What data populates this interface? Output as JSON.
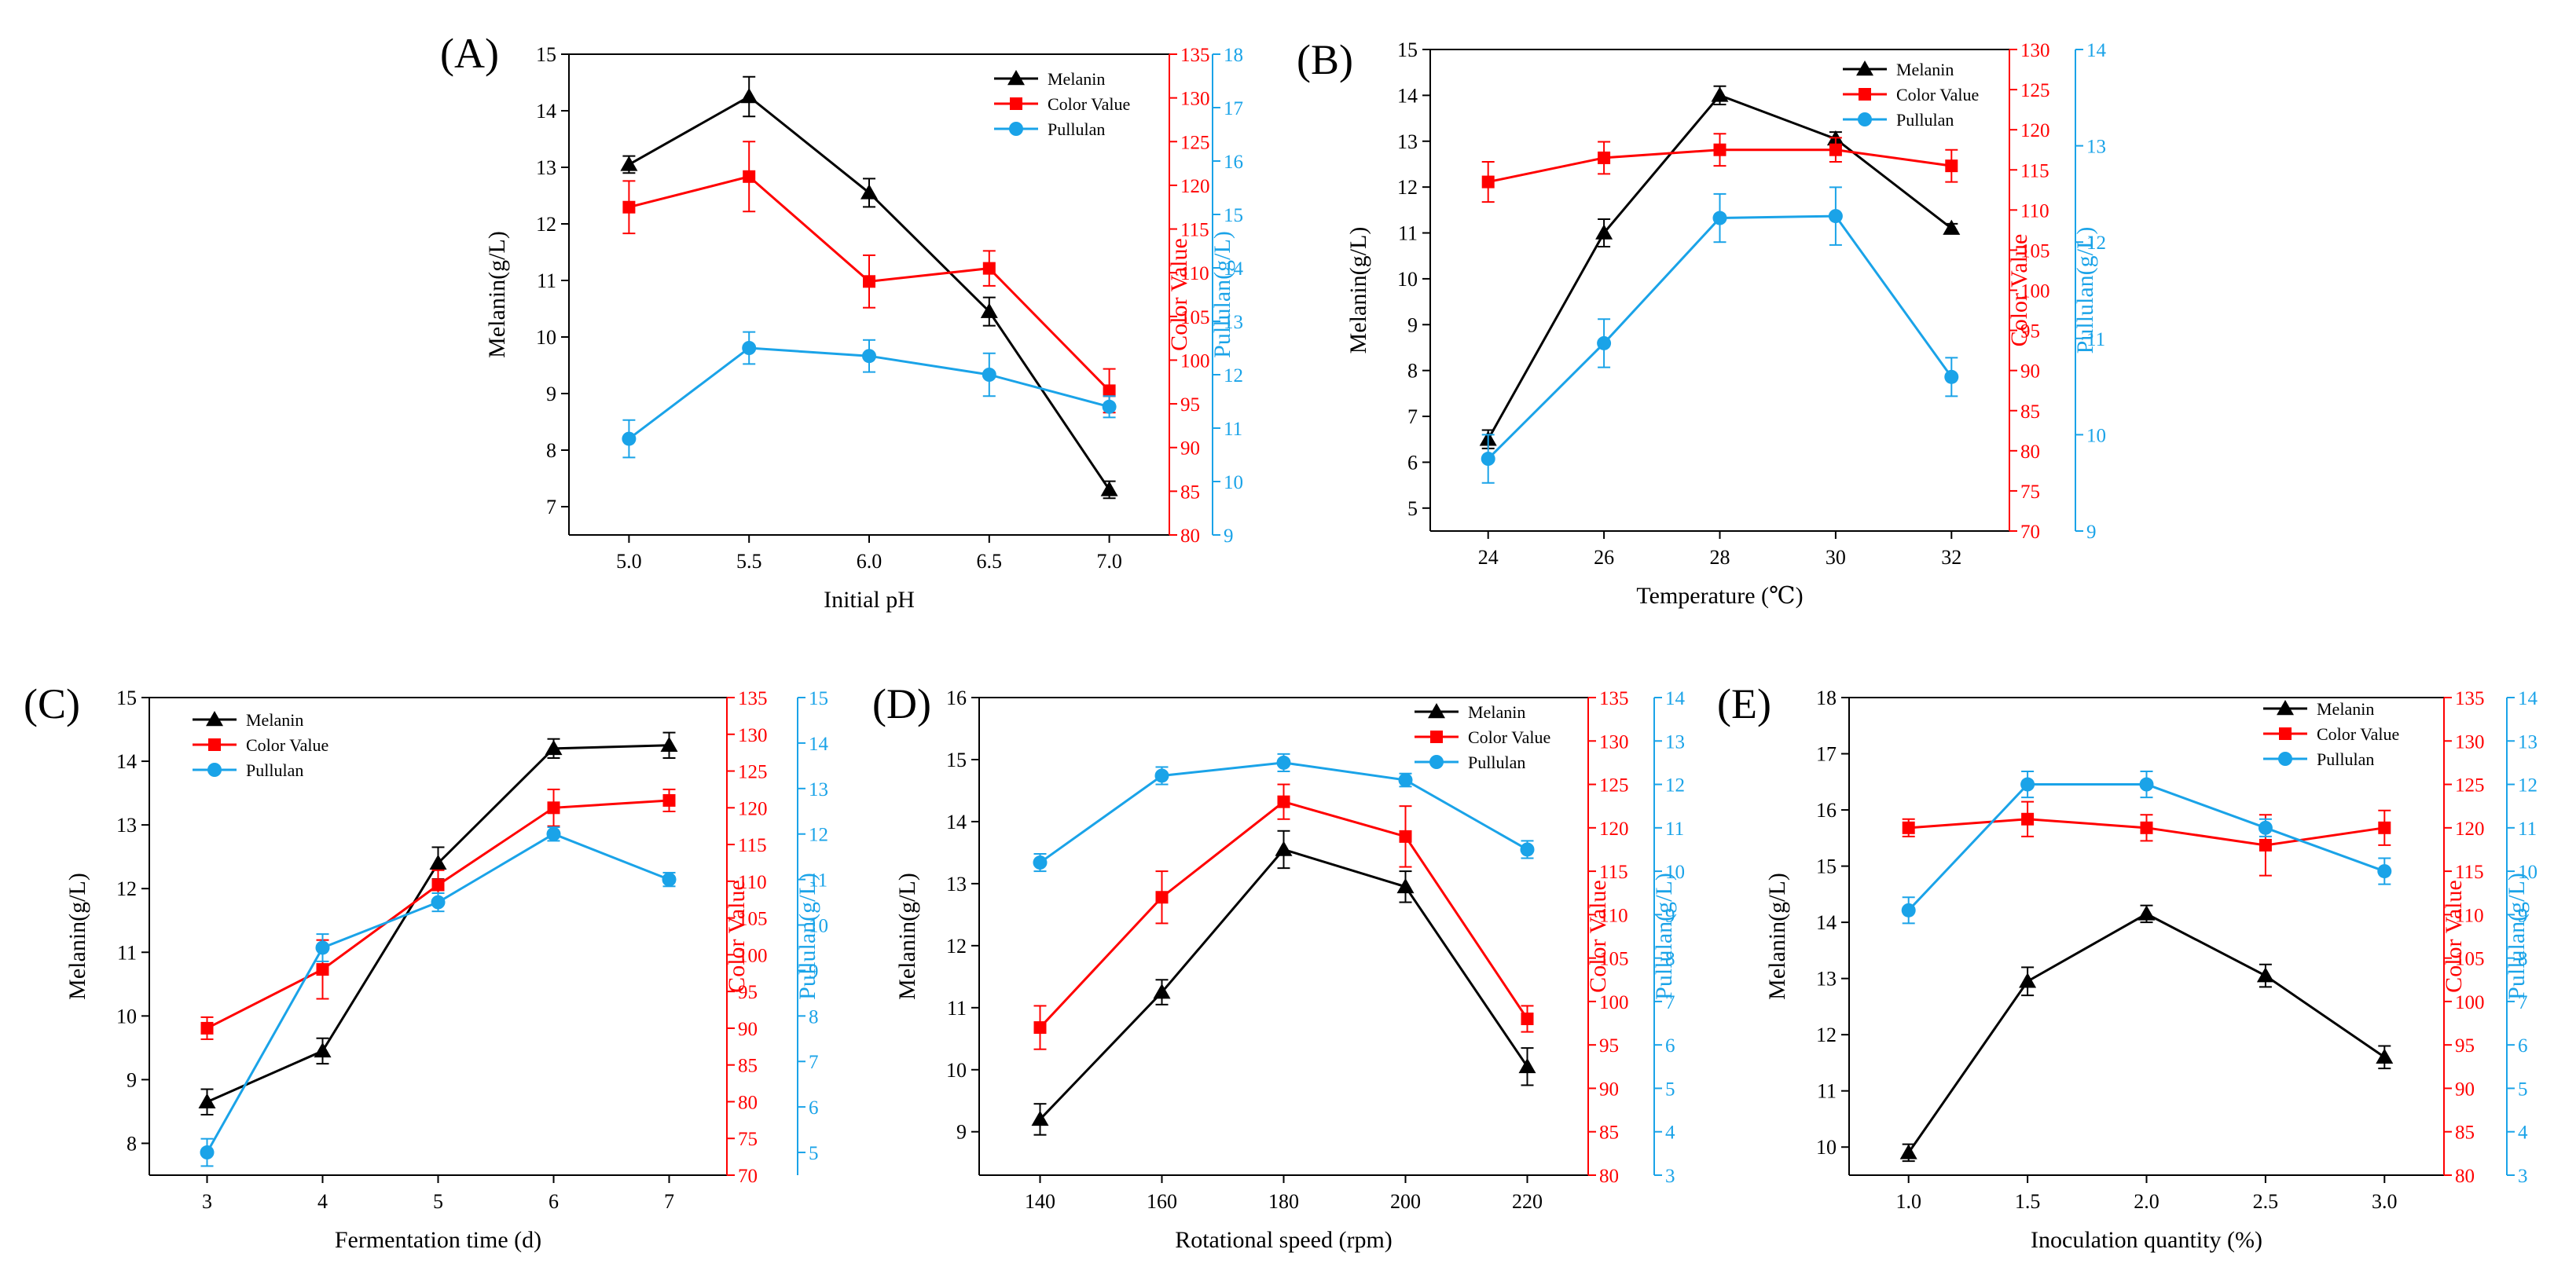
{
  "colors": {
    "melanin": "#000000",
    "color_value": "#ff0000",
    "pullulan": "#1aa3e8"
  },
  "chart_data": [
    {
      "panel_label": "(A)",
      "type": "line",
      "xlabel": "Initial pH",
      "x_ticks": [
        "5.0",
        "5.5",
        "6.0",
        "6.5",
        "7.0"
      ],
      "x": [
        5.0,
        5.5,
        6.0,
        6.5,
        7.0
      ],
      "xlim": [
        4.75,
        7.25
      ],
      "y_left": {
        "label": "Melanin(g/L)",
        "lim": [
          6.5,
          15
        ],
        "ticks": [
          7,
          8,
          9,
          10,
          11,
          12,
          13,
          14,
          15
        ]
      },
      "y_right1": {
        "label": "Color Value",
        "lim": [
          80,
          135
        ],
        "ticks": [
          80,
          85,
          90,
          95,
          100,
          105,
          110,
          115,
          120,
          125,
          130,
          135
        ]
      },
      "y_right2": {
        "label": "Pullulan(g/L)",
        "lim": [
          9,
          18
        ],
        "ticks": [
          9,
          10,
          11,
          12,
          13,
          14,
          15,
          16,
          17,
          18
        ]
      },
      "legend": "top-right",
      "series": [
        {
          "name": "Melanin",
          "axis": "left",
          "values": [
            13.05,
            14.25,
            12.55,
            10.45,
            7.3
          ],
          "errors": [
            0.15,
            0.35,
            0.25,
            0.25,
            0.15
          ]
        },
        {
          "name": "Color Value",
          "axis": "right1",
          "values": [
            117.5,
            121.0,
            109.0,
            110.5,
            96.5
          ],
          "errors": [
            3.0,
            4.0,
            3.0,
            2.0,
            2.5
          ]
        },
        {
          "name": "Pullulan",
          "axis": "right2",
          "values": [
            10.8,
            12.5,
            12.35,
            12.0,
            11.4
          ],
          "errors": [
            0.35,
            0.3,
            0.3,
            0.4,
            0.2
          ]
        }
      ]
    },
    {
      "panel_label": "(B)",
      "type": "line",
      "xlabel": "Temperature (℃)",
      "x_ticks": [
        "24",
        "26",
        "28",
        "30",
        "32"
      ],
      "x": [
        24,
        26,
        28,
        30,
        32
      ],
      "xlim": [
        23,
        33
      ],
      "y_left": {
        "label": "Melanin(g/L)",
        "lim": [
          4.5,
          15
        ],
        "ticks": [
          5,
          6,
          7,
          8,
          9,
          10,
          11,
          12,
          13,
          14,
          15
        ]
      },
      "y_right1": {
        "label": "Color Value",
        "lim": [
          70,
          130
        ],
        "ticks": [
          70,
          75,
          80,
          85,
          90,
          95,
          100,
          105,
          110,
          115,
          120,
          125,
          130
        ]
      },
      "y_right2": {
        "label": "Pullulan(g/L)",
        "lim": [
          9,
          14
        ],
        "ticks": [
          9,
          10,
          11,
          12,
          13,
          14
        ]
      },
      "legend": "top-right",
      "series": [
        {
          "name": "Melanin",
          "axis": "left",
          "values": [
            6.5,
            11.0,
            14.0,
            13.05,
            11.1
          ],
          "errors": [
            0.2,
            0.3,
            0.2,
            0.15,
            0.1
          ]
        },
        {
          "name": "Color Value",
          "axis": "right1",
          "values": [
            113.5,
            116.5,
            117.5,
            117.5,
            115.5
          ],
          "errors": [
            2.5,
            2.0,
            2.0,
            1.5,
            2.0
          ]
        },
        {
          "name": "Pullulan",
          "axis": "right2",
          "values": [
            9.75,
            10.95,
            12.25,
            12.27,
            10.6
          ],
          "errors": [
            0.25,
            0.25,
            0.25,
            0.3,
            0.2
          ]
        }
      ]
    },
    {
      "panel_label": "(C)",
      "type": "line",
      "xlabel": "Fermentation time (d)",
      "x_ticks": [
        "3",
        "4",
        "5",
        "6",
        "7"
      ],
      "x": [
        3,
        4,
        5,
        6,
        7
      ],
      "xlim": [
        2.5,
        7.5
      ],
      "y_left": {
        "label": "Melanin(g/L)",
        "lim": [
          7.5,
          15
        ],
        "ticks": [
          8,
          9,
          10,
          11,
          12,
          13,
          14,
          15
        ]
      },
      "y_right1": {
        "label": "Color Value",
        "lim": [
          70,
          135
        ],
        "ticks": [
          70,
          75,
          80,
          85,
          90,
          95,
          100,
          105,
          110,
          115,
          120,
          125,
          130,
          135
        ]
      },
      "y_right2": {
        "label": "Pullulan(g/L)",
        "lim": [
          4.5,
          15
        ],
        "ticks": [
          5,
          6,
          7,
          8,
          9,
          10,
          11,
          12,
          13,
          14,
          15
        ]
      },
      "legend": "top-left",
      "series": [
        {
          "name": "Melanin",
          "axis": "left",
          "values": [
            8.65,
            9.45,
            12.4,
            14.2,
            14.25
          ],
          "errors": [
            0.2,
            0.2,
            0.25,
            0.15,
            0.2
          ]
        },
        {
          "name": "Color Value",
          "axis": "right1",
          "values": [
            90.0,
            98.0,
            109.5,
            120.0,
            121.0
          ],
          "errors": [
            1.5,
            4.0,
            2.0,
            2.5,
            1.5
          ]
        },
        {
          "name": "Pullulan",
          "axis": "right2",
          "values": [
            5.0,
            9.5,
            10.5,
            12.0,
            11.0
          ],
          "errors": [
            0.3,
            0.3,
            0.2,
            0.15,
            0.15
          ]
        }
      ]
    },
    {
      "panel_label": "(D)",
      "type": "line",
      "xlabel": "Rotational speed (rpm)",
      "x_ticks": [
        "140",
        "160",
        "180",
        "200",
        "220"
      ],
      "x": [
        140,
        160,
        180,
        200,
        220
      ],
      "xlim": [
        130,
        230
      ],
      "y_left": {
        "label": "Melanin(g/L)",
        "lim": [
          8.3,
          16
        ],
        "ticks": [
          9,
          10,
          11,
          12,
          13,
          14,
          15,
          16
        ]
      },
      "y_right1": {
        "label": "Color Value",
        "lim": [
          80,
          135
        ],
        "ticks": [
          80,
          85,
          90,
          95,
          100,
          105,
          110,
          115,
          120,
          125,
          130,
          135
        ]
      },
      "y_right2": {
        "label": "Pullulan(g/L)",
        "lim": [
          3,
          14
        ],
        "ticks": [
          3,
          4,
          5,
          6,
          7,
          8,
          9,
          10,
          11,
          12,
          13,
          14
        ]
      },
      "legend": "top-right",
      "series": [
        {
          "name": "Melanin",
          "axis": "left",
          "values": [
            9.2,
            11.25,
            13.55,
            12.95,
            10.05
          ],
          "errors": [
            0.25,
            0.2,
            0.3,
            0.25,
            0.3
          ]
        },
        {
          "name": "Color Value",
          "axis": "right1",
          "values": [
            97.0,
            112.0,
            123.0,
            119.0,
            98.0
          ],
          "errors": [
            2.5,
            3.0,
            2.0,
            3.5,
            1.5
          ]
        },
        {
          "name": "Pullulan",
          "axis": "right2",
          "values": [
            10.2,
            12.2,
            12.5,
            12.1,
            10.5
          ],
          "errors": [
            0.2,
            0.2,
            0.2,
            0.15,
            0.2
          ]
        }
      ]
    },
    {
      "panel_label": "(E)",
      "type": "line",
      "xlabel": "Inoculation quantity (%)",
      "x_ticks": [
        "1.0",
        "1.5",
        "2.0",
        "2.5",
        "3.0"
      ],
      "x": [
        1.0,
        1.5,
        2.0,
        2.5,
        3.0
      ],
      "xlim": [
        0.75,
        3.25
      ],
      "y_left": {
        "label": "Melanin(g/L)",
        "lim": [
          9.5,
          18
        ],
        "ticks": [
          10,
          11,
          12,
          13,
          14,
          15,
          16,
          17,
          18
        ]
      },
      "y_right1": {
        "label": "Color Value",
        "lim": [
          80,
          135
        ],
        "ticks": [
          80,
          85,
          90,
          95,
          100,
          105,
          110,
          115,
          120,
          125,
          130,
          135
        ]
      },
      "y_right2": {
        "label": "Pullulan(g/L)",
        "lim": [
          3,
          14
        ],
        "ticks": [
          3,
          4,
          5,
          6,
          7,
          8,
          9,
          10,
          11,
          12,
          13,
          14
        ]
      },
      "legend": "top-right",
      "series": [
        {
          "name": "Melanin",
          "axis": "left",
          "values": [
            9.9,
            12.95,
            14.15,
            13.05,
            11.6
          ],
          "errors": [
            0.15,
            0.25,
            0.15,
            0.2,
            0.2
          ]
        },
        {
          "name": "Color Value",
          "axis": "right1",
          "values": [
            120.0,
            121.0,
            120.0,
            118.0,
            120.0
          ],
          "errors": [
            1.0,
            2.0,
            1.5,
            3.5,
            2.0
          ]
        },
        {
          "name": "Pullulan",
          "axis": "right2",
          "values": [
            9.1,
            12.0,
            12.0,
            11.0,
            10.0
          ],
          "errors": [
            0.3,
            0.3,
            0.3,
            0.2,
            0.3
          ]
        }
      ]
    }
  ]
}
